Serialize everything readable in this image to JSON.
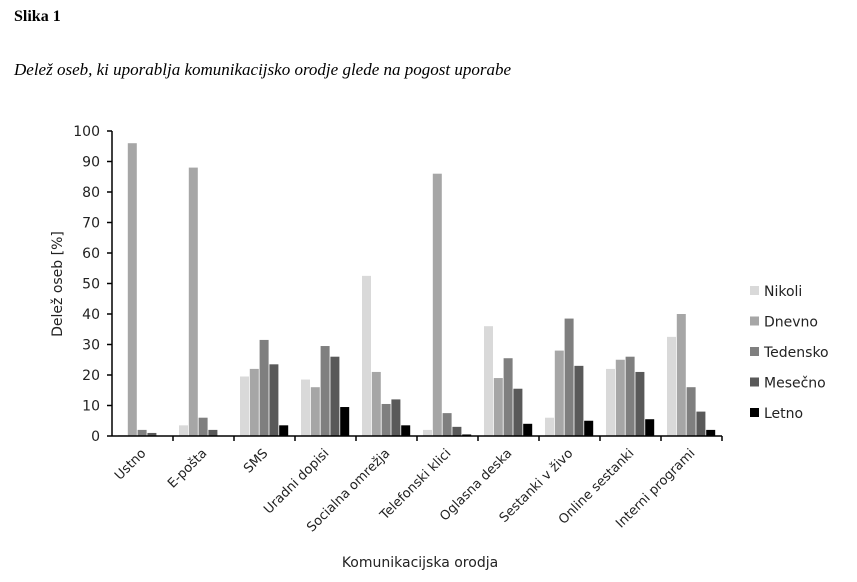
{
  "figure_label": "Slika 1",
  "figure_title": "Delež oseb, ki uporablja komunikacijsko orodje glede na pogost uporabe",
  "chart_data": {
    "type": "bar",
    "xlabel": "Komunikacijska orodja",
    "ylabel": "Delež oseb [%]",
    "ylim": [
      0,
      100
    ],
    "yticks": [
      0,
      10,
      20,
      30,
      40,
      50,
      60,
      70,
      80,
      90,
      100
    ],
    "legend_position": "right",
    "categories": [
      "Ustno",
      "E-pošta",
      "SMS",
      "Uradni dopisi",
      "Socialna omrežja",
      "Telefonski klici",
      "Oglasna deska",
      "Sestanki v živo",
      "Online sestanki",
      "Interni programi"
    ],
    "series": [
      {
        "name": "Nikoli",
        "color": "#d9d9d9",
        "values": [
          0.3,
          3.5,
          19.5,
          18.5,
          52.5,
          2,
          36,
          6,
          22,
          32.5
        ]
      },
      {
        "name": "Dnevno",
        "color": "#a6a6a6",
        "values": [
          96,
          88,
          22,
          16,
          21,
          86,
          19,
          28,
          25,
          40
        ]
      },
      {
        "name": "Tedensko",
        "color": "#7f7f7f",
        "values": [
          2,
          6,
          31.5,
          29.5,
          10.5,
          7.5,
          25.5,
          38.5,
          26,
          16
        ]
      },
      {
        "name": "Mesečno",
        "color": "#595959",
        "values": [
          1,
          2,
          23.5,
          26,
          12,
          3,
          15.5,
          23,
          21,
          8
        ]
      },
      {
        "name": "Letno",
        "color": "#000000",
        "values": [
          0,
          0,
          3.5,
          9.5,
          3.5,
          0.5,
          4,
          5,
          5.5,
          2
        ]
      }
    ]
  }
}
